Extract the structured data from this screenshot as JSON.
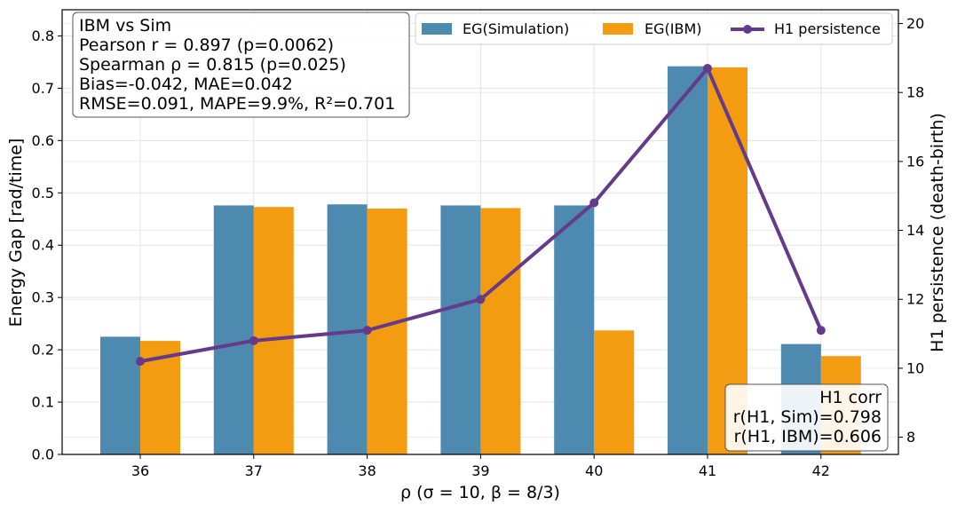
{
  "chart_data": {
    "type": "bar",
    "categories": [
      "36",
      "37",
      "38",
      "39",
      "40",
      "41",
      "42"
    ],
    "series": [
      {
        "name": "EG(Simulation)",
        "axis": "left",
        "kind": "bar",
        "color": "#4e89b0",
        "values": [
          0.225,
          0.476,
          0.478,
          0.476,
          0.476,
          0.742,
          0.211
        ]
      },
      {
        "name": "EG(IBM)",
        "axis": "left",
        "kind": "bar",
        "color": "#f39c12",
        "values": [
          0.217,
          0.473,
          0.47,
          0.471,
          0.237,
          0.74,
          0.188
        ]
      },
      {
        "name": "H1 persistence",
        "axis": "right",
        "kind": "line",
        "color": "#663a8a",
        "values": [
          10.2,
          10.8,
          11.1,
          12.0,
          14.8,
          18.7,
          11.1
        ]
      }
    ],
    "xlabel": "ρ (σ = 10,  β = 8/3)",
    "ylabel": "Energy Gap [rad/time]",
    "y2label": "H1 persistence (death-birth)",
    "ylim": [
      0,
      0.85
    ],
    "y2lim": [
      7.5,
      20.4
    ],
    "yticks": [
      "0.0",
      "0.1",
      "0.2",
      "0.3",
      "0.4",
      "0.5",
      "0.6",
      "0.7",
      "0.8"
    ],
    "y2ticks": [
      "8",
      "10",
      "12",
      "14",
      "16",
      "18",
      "20"
    ],
    "grid": true,
    "legend_position": "top-right",
    "stats_box": [
      "IBM vs Sim",
      "Pearson r = 0.897 (p=0.0062)",
      "Spearman ρ = 0.815 (p=0.025)",
      "Bias=-0.042, MAE=0.042",
      "RMSE=0.091, MAPE=9.9%, R²=0.701"
    ],
    "h1_box": [
      "H1 corr",
      "r(H1, Sim)=0.798",
      "r(H1, IBM)=0.606"
    ]
  }
}
